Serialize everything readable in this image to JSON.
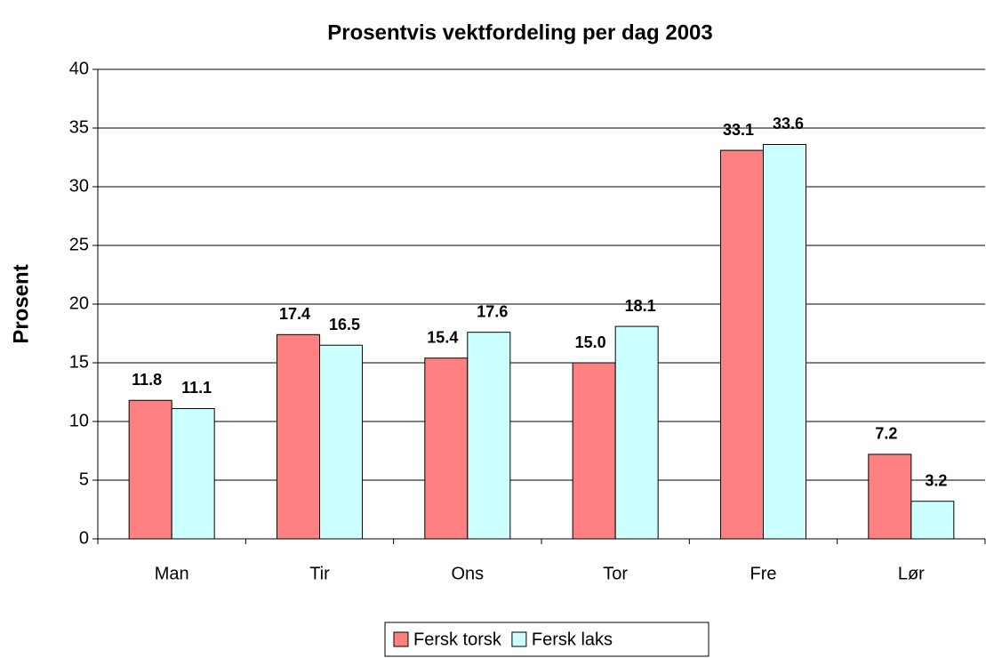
{
  "chart_data": {
    "type": "bar",
    "title": "Prosentvis vektfordeling per dag 2003",
    "y_label": "Prosent",
    "categories": [
      "Man",
      "Tir",
      "Ons",
      "Tor",
      "Fre",
      "Lør"
    ],
    "series": [
      {
        "name": "Fersk torsk",
        "color": "#FF8080",
        "values": [
          11.8,
          17.4,
          15.4,
          15,
          33.1,
          7.2
        ],
        "value_labels": [
          "11.8",
          "17.4",
          "15.4",
          "15.0",
          "33.1",
          "7.2"
        ]
      },
      {
        "name": "Fersk laks",
        "color": "#CCFFFF",
        "values": [
          11.1,
          16.5,
          17.6,
          18.1,
          33.6,
          3.2
        ],
        "value_labels": [
          "11.1",
          "16.5",
          "17.6",
          "18.1",
          "33.6",
          "3.2"
        ]
      }
    ],
    "ylim": [
      0,
      40
    ],
    "yticks": [
      0,
      5,
      10,
      15,
      20,
      25,
      30,
      35,
      40
    ],
    "grid": true,
    "legend": "bottom"
  }
}
